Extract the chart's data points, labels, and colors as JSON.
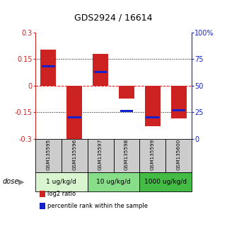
{
  "title": "GDS2924 / 16614",
  "samples": [
    "GSM135595",
    "GSM135596",
    "GSM135597",
    "GSM135598",
    "GSM135599",
    "GSM135600"
  ],
  "log2_ratio": [
    0.205,
    -0.305,
    0.18,
    -0.072,
    -0.228,
    -0.185
  ],
  "percentile_rank": [
    68,
    20,
    63,
    26,
    20,
    27
  ],
  "ylim_left": [
    -0.3,
    0.3
  ],
  "ylim_right": [
    0,
    100
  ],
  "yticks_left": [
    -0.3,
    -0.15,
    0,
    0.15,
    0.3
  ],
  "yticks_right": [
    0,
    25,
    50,
    75,
    100
  ],
  "ytick_labels_left": [
    "-0.3",
    "-0.15",
    "0",
    "0.15",
    "0.3"
  ],
  "ytick_labels_right": [
    "0",
    "25",
    "50",
    "75",
    "100%"
  ],
  "hlines": [
    -0.15,
    0,
    0.15
  ],
  "hline_styles": [
    "dotted",
    "dashed",
    "dotted"
  ],
  "hline_colors": [
    "black",
    "red",
    "black"
  ],
  "bar_color_red": "#cc2222",
  "bar_color_blue": "#1122cc",
  "bar_width": 0.6,
  "dose_groups": [
    {
      "label": "1 ug/kg/d",
      "samples": [
        0,
        1
      ],
      "color": "#d8f5d0"
    },
    {
      "label": "10 ug/kg/d",
      "samples": [
        2,
        3
      ],
      "color": "#88dd88"
    },
    {
      "label": "1000 ug/kg/d",
      "samples": [
        4,
        5
      ],
      "color": "#44bb44"
    }
  ],
  "dose_label": "dose",
  "legend_red_label": "log2 ratio",
  "legend_blue_label": "percentile rank within the sample",
  "left_axis_color": "#cc2222",
  "right_axis_color": "#1122cc",
  "sample_box_color": "#cccccc",
  "figure_width": 3.21,
  "figure_height": 3.54
}
